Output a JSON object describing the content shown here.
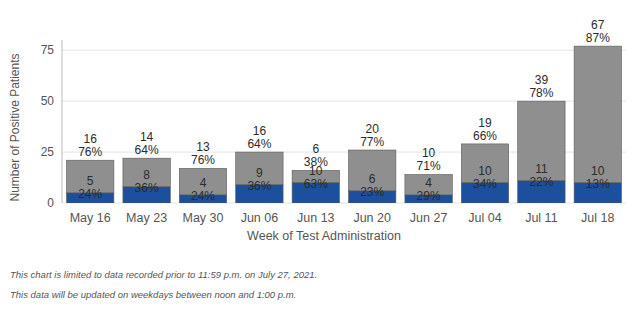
{
  "chart_data": {
    "type": "bar",
    "stacked": true,
    "data_labels": true,
    "grid": true,
    "x_label": "Week of Test Administration",
    "y_label": "Number of Positive Patients",
    "categories": [
      "May 16",
      "May 23",
      "May 30",
      "Jun 06",
      "Jun 13",
      "Jun 20",
      "Jun 27",
      "Jul 04",
      "Jul 11",
      "Jul 18"
    ],
    "series": [
      {
        "color": "#1c4f9c",
        "values": [
          5,
          8,
          4,
          9,
          10,
          6,
          4,
          10,
          11,
          10
        ],
        "percent_labels": [
          "24%",
          "36%",
          "24%",
          "36%",
          "63%",
          "23%",
          "29%",
          "34%",
          "22%",
          "13%"
        ]
      },
      {
        "color": "#8f8f8f",
        "values": [
          16,
          14,
          13,
          16,
          6,
          20,
          10,
          19,
          39,
          67
        ],
        "percent_labels": [
          "76%",
          "64%",
          "76%",
          "64%",
          "38%",
          "77%",
          "71%",
          "66%",
          "78%",
          "87%"
        ]
      }
    ],
    "ylim": [
      0,
      80
    ],
    "yticks": [
      0,
      25,
      50,
      75
    ],
    "footnotes": [
      "This chart is limited to data recorded prior to 11:59 p.m. on July 27, 2021.",
      "This data will be updated on weekdays between noon and 1:00 p.m."
    ]
  }
}
